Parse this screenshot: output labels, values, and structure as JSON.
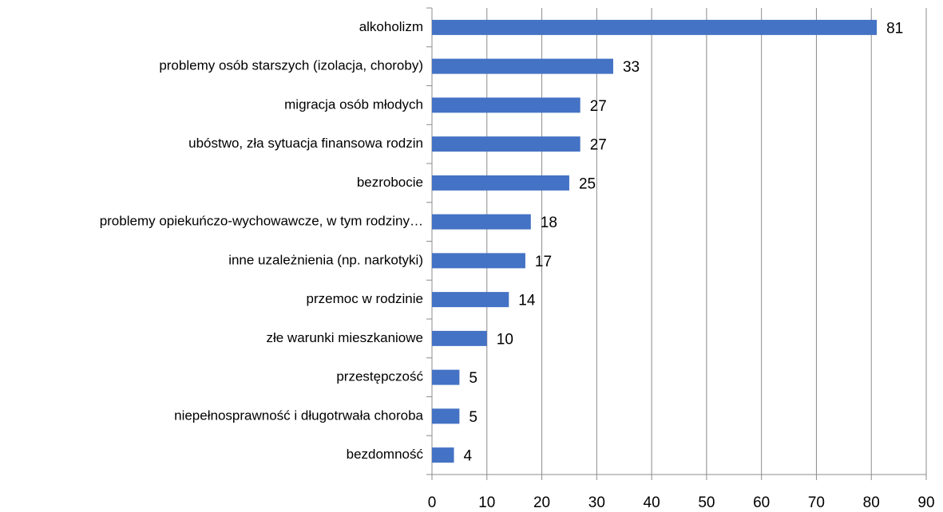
{
  "chart_data": {
    "type": "bar",
    "categories": [
      "alkoholizm",
      "problemy osób starszych (izolacja, choroby)",
      "migracja osób młodych",
      "ubóstwo, zła sytuacja finansowa rodzin",
      "bezrobocie",
      "problemy opiekuńczo-wychowawcze, w tym rodziny…",
      "inne uzależnienia (np. narkotyki)",
      "przemoc w rodzinie",
      "złe warunki mieszkaniowe",
      "przestępczość",
      "niepełnosprawność i długotrwała choroba",
      "bezdomność"
    ],
    "values": [
      81,
      33,
      27,
      27,
      25,
      18,
      17,
      14,
      10,
      5,
      5,
      4
    ],
    "color": "#4472c4",
    "xlim": [
      0,
      90
    ],
    "xticks": [
      0,
      10,
      20,
      30,
      40,
      50,
      60,
      70,
      80,
      90
    ],
    "grid": true
  }
}
